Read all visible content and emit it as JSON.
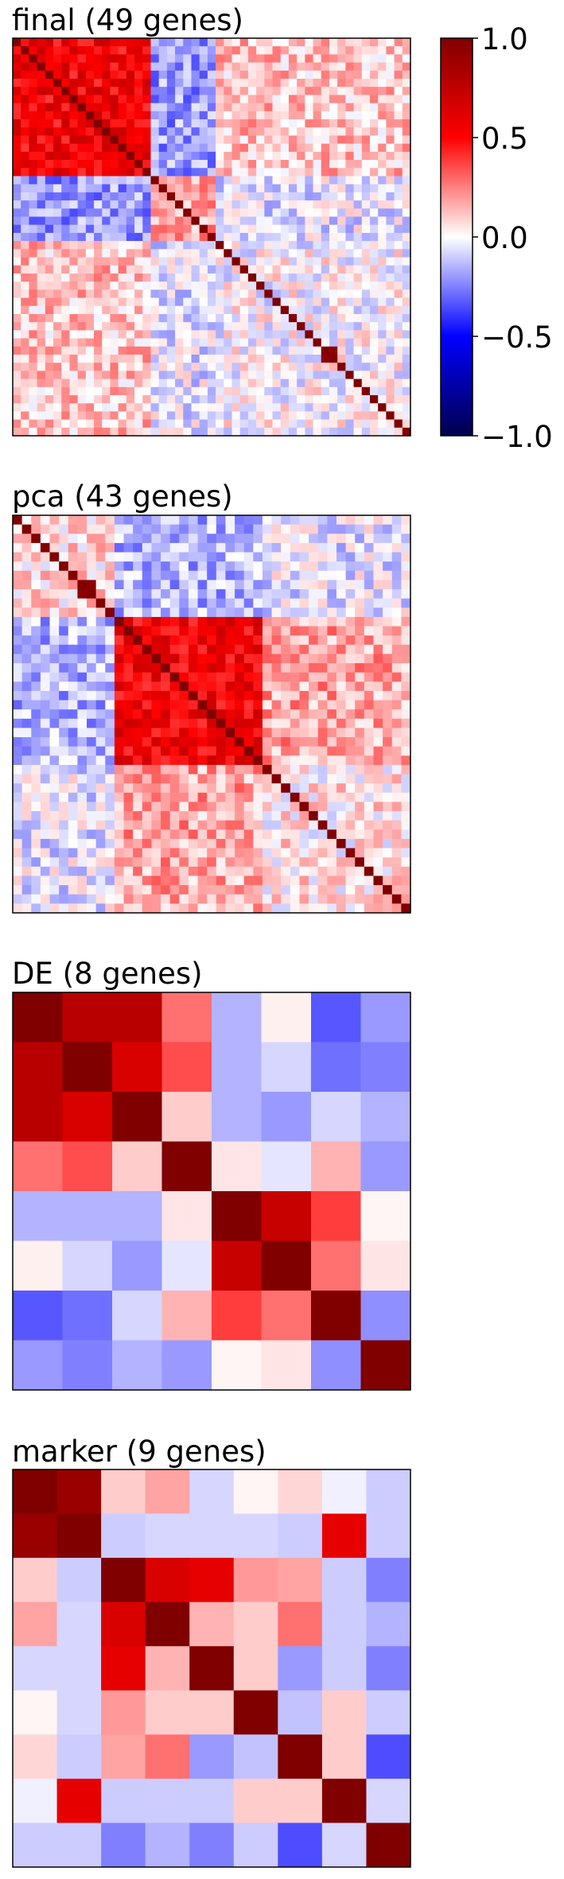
{
  "figure": {
    "panels": [
      {
        "title": "final (49 genes)"
      },
      {
        "title": "pca (43 genes)"
      },
      {
        "title": "DE (8 genes)"
      },
      {
        "title": "marker (9 genes)"
      }
    ],
    "colorbar": {
      "ticks": [
        "1.0",
        "0.5",
        "0.0",
        "−0.5",
        "−1.0"
      ],
      "colormap": "seismic",
      "range": [
        -1.0,
        1.0
      ]
    }
  },
  "chart_data": [
    {
      "type": "heatmap",
      "title": "final (49 genes)",
      "n": 49,
      "colormap": "seismic",
      "vmin": -1.0,
      "vmax": 1.0,
      "diagonal": 1.0,
      "blocks": [
        {
          "rows": [
            0,
            16
          ],
          "cols": [
            0,
            16
          ],
          "value": 0.55
        },
        {
          "rows": [
            0,
            16
          ],
          "cols": [
            17,
            24
          ],
          "value": -0.2
        },
        {
          "rows": [
            0,
            16
          ],
          "cols": [
            25,
            48
          ],
          "value": 0.12
        },
        {
          "rows": [
            17,
            24
          ],
          "cols": [
            17,
            24
          ],
          "value": 0.2
        },
        {
          "rows": [
            17,
            24
          ],
          "cols": [
            25,
            48
          ],
          "value": -0.05
        },
        {
          "rows": [
            25,
            48
          ],
          "cols": [
            25,
            48
          ],
          "value": 0.0
        }
      ],
      "highlights": [
        {
          "rows": [
            38,
            39
          ],
          "cols": [
            38,
            39
          ],
          "value": 0.85
        }
      ]
    },
    {
      "type": "heatmap",
      "title": "pca (43 genes)",
      "n": 43,
      "colormap": "seismic",
      "vmin": -1.0,
      "vmax": 1.0,
      "diagonal": 1.0,
      "blocks": [
        {
          "rows": [
            0,
            10
          ],
          "cols": [
            0,
            10
          ],
          "value": 0.08
        },
        {
          "rows": [
            0,
            10
          ],
          "cols": [
            11,
            26
          ],
          "value": -0.15
        },
        {
          "rows": [
            0,
            10
          ],
          "cols": [
            27,
            42
          ],
          "value": -0.05
        },
        {
          "rows": [
            11,
            26
          ],
          "cols": [
            11,
            26
          ],
          "value": 0.55
        },
        {
          "rows": [
            11,
            26
          ],
          "cols": [
            27,
            42
          ],
          "value": 0.18
        },
        {
          "rows": [
            27,
            42
          ],
          "cols": [
            27,
            42
          ],
          "value": 0.05
        }
      ],
      "highlights": [
        {
          "rows": [
            7,
            8
          ],
          "cols": [
            7,
            8
          ],
          "value": 0.85
        }
      ]
    },
    {
      "type": "heatmap",
      "title": "DE (8 genes)",
      "n": 8,
      "colormap": "seismic",
      "vmin": -1.0,
      "vmax": 1.0,
      "matrix": [
        [
          1.0,
          0.78,
          0.78,
          0.28,
          -0.15,
          0.03,
          -0.33,
          -0.2
        ],
        [
          0.78,
          1.0,
          0.65,
          0.35,
          -0.15,
          -0.08,
          -0.28,
          -0.25
        ],
        [
          0.78,
          0.65,
          1.0,
          0.1,
          -0.15,
          -0.2,
          -0.08,
          -0.15
        ],
        [
          0.28,
          0.35,
          0.1,
          1.0,
          0.05,
          -0.05,
          0.15,
          -0.2
        ],
        [
          -0.15,
          -0.15,
          -0.15,
          0.05,
          1.0,
          0.72,
          0.38,
          0.02
        ],
        [
          0.03,
          -0.08,
          -0.2,
          -0.05,
          0.72,
          1.0,
          0.28,
          0.05
        ],
        [
          -0.33,
          -0.28,
          -0.08,
          0.15,
          0.38,
          0.28,
          1.0,
          -0.22
        ],
        [
          -0.2,
          -0.25,
          -0.15,
          -0.2,
          0.02,
          0.05,
          -0.22,
          1.0
        ]
      ]
    },
    {
      "type": "heatmap",
      "title": "marker (9 genes)",
      "n": 9,
      "colormap": "seismic",
      "vmin": -1.0,
      "vmax": 1.0,
      "matrix": [
        [
          1.0,
          0.9,
          0.1,
          0.18,
          -0.08,
          0.02,
          0.08,
          -0.03,
          -0.1
        ],
        [
          0.9,
          1.0,
          -0.1,
          -0.08,
          -0.08,
          -0.08,
          -0.1,
          0.6,
          -0.1
        ],
        [
          0.1,
          -0.1,
          1.0,
          0.65,
          0.6,
          0.2,
          0.18,
          -0.1,
          -0.25
        ],
        [
          0.18,
          -0.08,
          0.65,
          1.0,
          0.15,
          0.1,
          0.28,
          -0.1,
          -0.15
        ],
        [
          -0.08,
          -0.08,
          0.6,
          0.15,
          1.0,
          0.1,
          -0.2,
          -0.1,
          -0.25
        ],
        [
          0.02,
          -0.08,
          0.2,
          0.1,
          0.1,
          1.0,
          -0.12,
          0.1,
          -0.1
        ],
        [
          0.08,
          -0.1,
          0.18,
          0.28,
          -0.2,
          -0.12,
          1.0,
          0.1,
          -0.35
        ],
        [
          -0.03,
          0.6,
          -0.1,
          -0.1,
          -0.1,
          0.1,
          0.1,
          1.0,
          -0.08
        ],
        [
          -0.1,
          -0.1,
          -0.25,
          -0.15,
          -0.25,
          -0.1,
          -0.35,
          -0.08,
          1.0
        ]
      ]
    }
  ]
}
